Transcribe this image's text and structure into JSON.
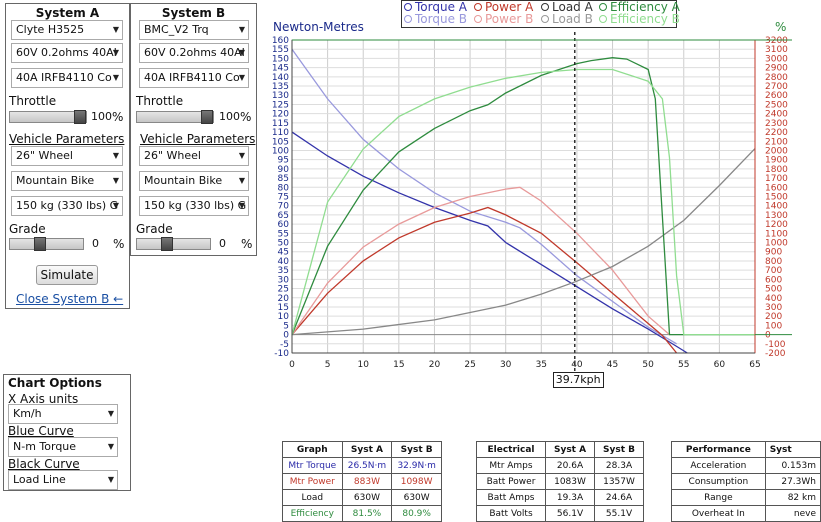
{
  "systemA": {
    "title": "System A",
    "motor": "Clyte H3525",
    "battery": "60V 0.2ohms 40AI",
    "controller": "40A IRFB4110 Co",
    "throttle_label": "Throttle",
    "throttle_value": "100",
    "throttle_unit": "%",
    "throttle_fraction": 1.0,
    "vehicle_params_label": "Vehicle Parameters",
    "wheel": "26\"  Wheel",
    "bike": "Mountain Bike",
    "weight": "150 kg (330 lbs) G",
    "grade_label": "Grade",
    "grade_value": "0",
    "grade_unit": "%",
    "simulate_label": "Simulate",
    "close_label": "Close System B ←"
  },
  "systemB": {
    "title": "System B",
    "motor": "BMC_V2 Trq",
    "battery": "60V 0.2ohms 40AI",
    "controller": "40A IRFB4110 Co",
    "throttle_label": "Throttle",
    "throttle_value": "100",
    "throttle_unit": "%",
    "throttle_fraction": 1.0,
    "vehicle_params_label": "Vehicle Parameters",
    "wheel": "26\"  Wheel",
    "bike": "Mountain Bike",
    "weight": "150 kg (330 lbs) G",
    "grade_label": "Grade",
    "grade_value": "0",
    "grade_unit": "%"
  },
  "chartOptions": {
    "title": "Chart Options",
    "x_axis_label": "X Axis units",
    "x_axis_value": "Km/h",
    "blue_label": "Blue Curve",
    "blue_value": "N-m Torque",
    "black_label": "Black Curve",
    "black_value": "Load Line"
  },
  "legend": [
    {
      "label": "Torque A",
      "color": "#3333aa"
    },
    {
      "label": "Power A",
      "color": "#c0392b"
    },
    {
      "label": "Load A",
      "color": "#333333"
    },
    {
      "label": "Efficiency A",
      "color": "#2e8b3e"
    },
    {
      "label": "Torque B",
      "color": "#9999dd"
    },
    {
      "label": "Power B",
      "color": "#e89a9a"
    },
    {
      "label": "Load B",
      "color": "#999999"
    },
    {
      "label": "Efficiency B",
      "color": "#90dd90"
    }
  ],
  "chart_data": {
    "type": "line",
    "left_axis_title": "Newton-Metres",
    "right_axis_title": "%",
    "xlim": [
      0,
      65
    ],
    "x_ticks": [
      0,
      5,
      10,
      15,
      20,
      25,
      30,
      35,
      40,
      45,
      50,
      55,
      60,
      65
    ],
    "y_left_lim": [
      -10,
      160
    ],
    "y_left_ticks": [
      -10,
      -5,
      0,
      5,
      10,
      15,
      20,
      25,
      30,
      35,
      40,
      45,
      50,
      55,
      60,
      65,
      70,
      75,
      80,
      85,
      90,
      95,
      100,
      105,
      110,
      115,
      120,
      125,
      130,
      135,
      140,
      145,
      150,
      155,
      160
    ],
    "y_right_lim": [
      -200,
      3200
    ],
    "y_right_ticks": [
      -200,
      -100,
      0,
      100,
      200,
      300,
      400,
      500,
      600,
      700,
      800,
      900,
      1000,
      1100,
      1200,
      1300,
      1400,
      1500,
      1600,
      1700,
      1800,
      1900,
      2000,
      2100,
      2200,
      2300,
      2400,
      2500,
      2600,
      2700,
      2800,
      2900,
      3000,
      3100,
      3200
    ],
    "cursor_x": 39.7,
    "cursor_label": "39.7kph",
    "series": [
      {
        "name": "Torque A",
        "color": "#3333aa",
        "axis": "left",
        "x": [
          0,
          5,
          10,
          15,
          20,
          25,
          27.5,
          30,
          35,
          40,
          45,
          50,
          53,
          55.5
        ],
        "y": [
          110,
          97,
          86,
          77,
          69,
          62,
          59,
          50,
          38,
          26,
          14,
          3,
          -4,
          -10
        ]
      },
      {
        "name": "Torque B",
        "color": "#9999dd",
        "axis": "left",
        "x": [
          0,
          5,
          10,
          15,
          20,
          25,
          30,
          32,
          35,
          40,
          45,
          50,
          54
        ],
        "y": [
          155,
          128,
          106,
          90,
          77,
          67,
          61,
          58,
          49,
          32,
          18,
          4,
          -5
        ]
      },
      {
        "name": "Power A",
        "color": "#c0392b",
        "axis": "right",
        "x": [
          0,
          5,
          10,
          15,
          20,
          25,
          27.5,
          30,
          35,
          40,
          45,
          50,
          52,
          54
        ],
        "y": [
          0,
          450,
          800,
          1050,
          1220,
          1320,
          1380,
          1300,
          1100,
          780,
          450,
          120,
          -10,
          -200
        ]
      },
      {
        "name": "Power B",
        "color": "#e89a9a",
        "axis": "right",
        "x": [
          0,
          5,
          10,
          15,
          20,
          25,
          30,
          32,
          35,
          40,
          45,
          50,
          53
        ],
        "y": [
          0,
          560,
          950,
          1200,
          1380,
          1500,
          1580,
          1600,
          1450,
          1100,
          700,
          200,
          0
        ]
      },
      {
        "name": "Load A",
        "color": "#888888",
        "axis": "left",
        "x": [
          0,
          10,
          20,
          30,
          35,
          40,
          45,
          50,
          55,
          60,
          65
        ],
        "y": [
          0,
          3,
          8,
          16,
          22,
          29,
          37,
          48,
          62,
          81,
          101
        ]
      },
      {
        "name": "Efficiency A",
        "color": "#2e8b3e",
        "axis": "pct",
        "x": [
          0,
          5,
          10,
          15,
          20,
          25,
          27.5,
          30,
          35,
          40,
          42,
          45,
          47,
          50,
          51,
          52,
          53,
          56,
          65
        ],
        "y": [
          0,
          30,
          49,
          62,
          70,
          76,
          78,
          82,
          88,
          92,
          93,
          94,
          93.5,
          90,
          80,
          40,
          0,
          0,
          0
        ]
      },
      {
        "name": "Efficiency B",
        "color": "#90dd90",
        "axis": "pct",
        "x": [
          0,
          5,
          10,
          15,
          20,
          25,
          30,
          35,
          40,
          45,
          50,
          52,
          53,
          54,
          55,
          56,
          65
        ],
        "y": [
          0,
          45,
          63,
          74,
          80,
          84,
          87,
          89,
          90,
          90,
          86,
          80,
          60,
          20,
          0,
          0,
          0
        ]
      }
    ]
  },
  "graphTable": {
    "headers": [
      "Graph",
      "Syst A",
      "Syst B"
    ],
    "rows": [
      {
        "label": "Mtr Torque",
        "a": "26.5N·m",
        "b": "32.9N·m",
        "color": "#2a2aa8"
      },
      {
        "label": "Mtr Power",
        "a": "883W",
        "b": "1098W",
        "color": "#c0392b"
      },
      {
        "label": "Load",
        "a": "630W",
        "b": "630W",
        "color": "#333333"
      },
      {
        "label": "Efficiency",
        "a": "81.5%",
        "b": "80.9%",
        "color": "#2e8b3e"
      }
    ]
  },
  "electricalTable": {
    "headers": [
      "Electrical",
      "Syst A",
      "Syst B"
    ],
    "rows": [
      {
        "label": "Mtr Amps",
        "a": "20.6A",
        "b": "28.3A"
      },
      {
        "label": "Batt Power",
        "a": "1083W",
        "b": "1357W"
      },
      {
        "label": "Batt Amps",
        "a": "19.3A",
        "b": "24.6A"
      },
      {
        "label": "Batt Volts",
        "a": "56.1V",
        "b": "55.1V"
      }
    ]
  },
  "performanceTable": {
    "headers": [
      "Performance",
      "Syst"
    ],
    "rows": [
      {
        "label": "Acceleration",
        "a": "0.153m"
      },
      {
        "label": "Consumption",
        "a": "27.3Wh"
      },
      {
        "label": "Range",
        "a": "82 km"
      },
      {
        "label": "Overheat In",
        "a": "neve"
      }
    ]
  }
}
